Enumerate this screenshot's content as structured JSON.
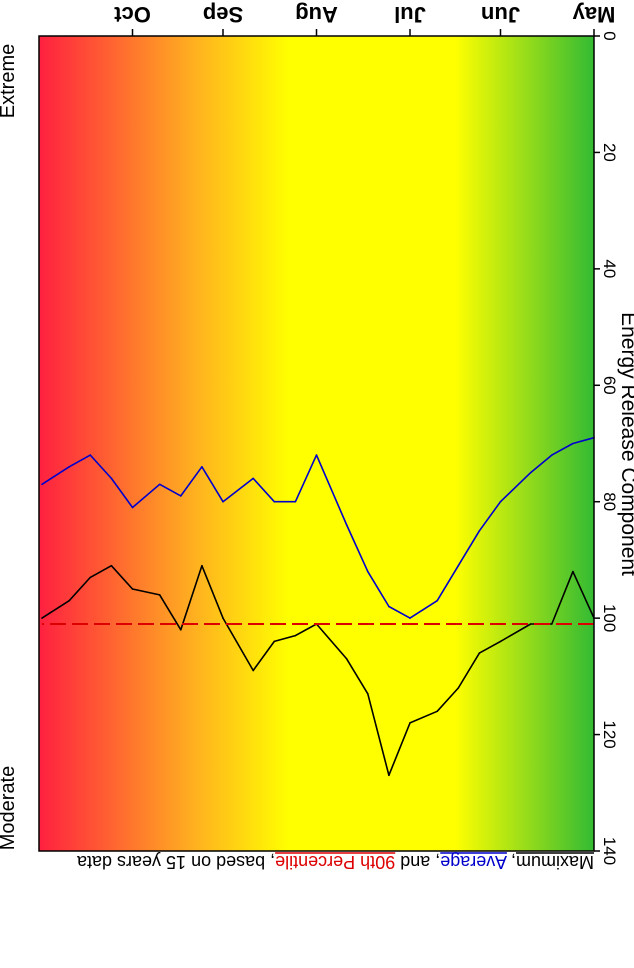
{
  "chart_data": {
    "type": "line",
    "title_parts": [
      {
        "text": "Maximum",
        "color": "#000000",
        "underline": true
      },
      {
        "text": ", ",
        "color": "#000000",
        "underline": false
      },
      {
        "text": "Average",
        "color": "#0000cc",
        "underline": true
      },
      {
        "text": ", and ",
        "color": "#000000",
        "underline": false
      },
      {
        "text": "90th Percentile",
        "color": "#dd0000",
        "underline": true
      },
      {
        "text": ", based on 15 years data",
        "color": "#000000",
        "underline": false
      }
    ],
    "ylabel": "Energy Release Component",
    "ylim": [
      0,
      140
    ],
    "yticks": [
      0,
      20,
      40,
      60,
      80,
      100,
      120,
      140
    ],
    "x_months": [
      "May",
      "Jun",
      "Jul",
      "Aug",
      "Sep",
      "Oct"
    ],
    "band_labels": {
      "top": "Extreme",
      "bottom": "Moderate"
    },
    "background_gradient": {
      "low": "#33bb33",
      "mid": "#ffff00",
      "upper": "#ffb020",
      "high": "#ff2040"
    },
    "series": [
      {
        "name": "Maximum",
        "color": "#000000",
        "style": "solid",
        "x": [
          "May 1",
          "May 8",
          "May 15",
          "May 22",
          "Jun 1",
          "Jun 8",
          "Jun 15",
          "Jun 22",
          "Jul 1",
          "Jul 8",
          "Jul 15",
          "Jul 22",
          "Aug 1",
          "Aug 8",
          "Aug 15",
          "Aug 22",
          "Sep 1",
          "Sep 8",
          "Sep 15",
          "Sep 22",
          "Oct 1",
          "Oct 8",
          "Oct 15",
          "Oct 22",
          "Oct 31"
        ],
        "values": [
          100,
          92,
          101,
          101,
          104,
          106,
          112,
          116,
          118,
          127,
          113,
          107,
          101,
          103,
          104,
          109,
          100,
          91,
          102,
          96,
          95,
          91,
          93,
          97,
          100
        ]
      },
      {
        "name": "Average",
        "color": "#0000cc",
        "style": "solid",
        "x": [
          "May 1",
          "May 8",
          "May 15",
          "May 22",
          "Jun 1",
          "Jun 8",
          "Jun 15",
          "Jun 22",
          "Jul 1",
          "Jul 8",
          "Jul 15",
          "Jul 22",
          "Aug 1",
          "Aug 8",
          "Aug 15",
          "Aug 22",
          "Sep 1",
          "Sep 8",
          "Sep 15",
          "Sep 22",
          "Oct 1",
          "Oct 8",
          "Oct 15",
          "Oct 22",
          "Oct 31"
        ],
        "values": [
          69,
          70,
          72,
          75,
          80,
          85,
          91,
          97,
          100,
          98,
          92,
          84,
          72,
          80,
          80,
          76,
          80,
          74,
          79,
          77,
          81,
          76,
          72,
          74,
          77
        ]
      },
      {
        "name": "90th Percentile",
        "color": "#dd0000",
        "style": "dashed",
        "x": [
          "May 1",
          "Oct 31"
        ],
        "values": [
          101,
          101
        ]
      }
    ]
  }
}
